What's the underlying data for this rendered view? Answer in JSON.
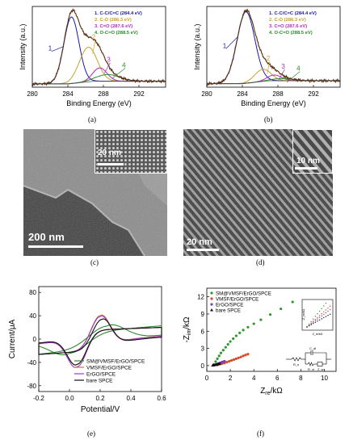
{
  "panels": {
    "a": {
      "label": "(a)",
      "chart_data": {
        "type": "line",
        "xlabel": "Binding Energy (eV)",
        "ylabel": "Intensity (a.u.)",
        "xlim": [
          280,
          295
        ],
        "xticks": [
          280,
          284,
          288,
          292
        ],
        "legend_position": "top-right",
        "legend": [
          {
            "text": "1. C-C/C=C (284.4 eV)",
            "color": "#1a1aa8"
          },
          {
            "text": "2. C-O (286.3 eV)",
            "color": "#c7a12a"
          },
          {
            "text": "3. C=O (287.6 eV)",
            "color": "#b32ab3"
          },
          {
            "text": "4. O-C=O (288.5 eV)",
            "color": "#2a8a2a"
          }
        ],
        "series": [
          {
            "name": "1. C-C/C=C (284.4 eV)",
            "center": 284.4,
            "amplitude": 1.0,
            "sigma": 0.85
          },
          {
            "name": "2. C-O (286.3 eV)",
            "center": 286.3,
            "amplitude": 0.52,
            "sigma": 1.0
          },
          {
            "name": "3. C=O (287.6 eV)",
            "center": 287.6,
            "amplitude": 0.2,
            "sigma": 0.8
          },
          {
            "name": "4. O-C=O (288.5 eV)",
            "center": 288.5,
            "amplitude": 0.1,
            "sigma": 1.3
          }
        ],
        "peak_numbers": [
          "1",
          "2",
          "3",
          "4"
        ]
      }
    },
    "b": {
      "label": "(b)",
      "chart_data": {
        "type": "line",
        "xlabel": "Binding Energy (eV)",
        "ylabel": "Intensity (a.u.)",
        "xlim": [
          280,
          295
        ],
        "xticks": [
          280,
          284,
          288,
          292
        ],
        "legend_position": "top-right",
        "legend": [
          {
            "text": "1. C-C/C=C (284.4 eV)",
            "color": "#1a1aa8"
          },
          {
            "text": "2. C-O (286.3 eV)",
            "color": "#c7a12a"
          },
          {
            "text": "3. C=O (287.6 eV)",
            "color": "#b32ab3"
          },
          {
            "text": "4. O-C=O (288.5 eV)",
            "color": "#2a8a2a"
          }
        ],
        "series": [
          {
            "name": "1. C-C/C=C (284.4 eV)",
            "center": 284.4,
            "amplitude": 1.0,
            "sigma": 1.0
          },
          {
            "name": "2. C-O (286.3 eV)",
            "center": 286.3,
            "amplitude": 0.17,
            "sigma": 0.9
          },
          {
            "name": "3. C=O (287.6 eV)",
            "center": 287.6,
            "amplitude": 0.08,
            "sigma": 0.8
          },
          {
            "name": "4. O-C=O (288.5 eV)",
            "center": 288.5,
            "amplitude": 0.03,
            "sigma": 1.2
          }
        ],
        "peak_numbers": [
          "1",
          "2",
          "3",
          "4"
        ]
      }
    },
    "c": {
      "label": "(c)",
      "scale_main": "200 nm",
      "scale_inset": "20 nm"
    },
    "d": {
      "label": "(d)",
      "scale_main": "20 nm",
      "scale_inset": "10 nm"
    },
    "e": {
      "label": "(e)",
      "chart_data": {
        "type": "line",
        "xlabel": "Potential/V",
        "ylabel": "Current/μA",
        "xlim": [
          -0.2,
          0.6
        ],
        "ylim": [
          -90,
          90
        ],
        "xticks": [
          "-0.2",
          "0.0",
          "0.2",
          "0.4",
          "0.6"
        ],
        "yticks": [
          "-80",
          "-40",
          "0",
          "40",
          "80"
        ],
        "legend_position": "bottom-center",
        "series": [
          {
            "name": "SM@VMSF/ErGO/SPCE",
            "color": "#2e8b2e",
            "ip_a": 42,
            "ip_c": -40,
            "epa": 0.24,
            "epc": 0.0,
            "width": 0.16,
            "bg": 10
          },
          {
            "name": "VMSF/ErGO/SPCE",
            "color": "#c47a35",
            "ip_a": 70,
            "ip_c": -68,
            "epa": 0.2,
            "epc": 0.05,
            "width": 0.085,
            "bg": 12
          },
          {
            "name": "ErGO/SPCE",
            "color": "#a536c8",
            "ip_a": 68,
            "ip_c": -73,
            "epa": 0.2,
            "epc": 0.05,
            "width": 0.085,
            "bg": 12
          },
          {
            "name": "bare SPCE",
            "color": "#111111",
            "ip_a": 62,
            "ip_c": -68,
            "epa": 0.21,
            "epc": 0.05,
            "width": 0.085,
            "bg": 12
          }
        ]
      }
    },
    "f": {
      "label": "(f)",
      "chart_data": {
        "type": "scatter",
        "xlabel": "Z",
        "xlabel_sub": "re",
        "xlabel_unit": "/kΩ",
        "ylabel": "-Z",
        "ylabel_sub": "im",
        "ylabel_unit": "/kΩ",
        "xlim": [
          0,
          11
        ],
        "ylim": [
          -1,
          13.5
        ],
        "xticks": [
          "0",
          "2",
          "4",
          "6",
          "8",
          "10"
        ],
        "yticks": [
          "0",
          "3",
          "6",
          "9",
          "12"
        ],
        "legend_position": "top-left",
        "series": [
          {
            "name": "SM@VMSF/ErGO/SPCE",
            "color": "#2e9a2e",
            "marker": "circle",
            "x": [
              0.6,
              0.75,
              0.9,
              1.05,
              1.2,
              1.4,
              1.6,
              1.8,
              2.0,
              2.25,
              2.5,
              2.8,
              3.1,
              3.5,
              4.0,
              4.6,
              5.4,
              6.3,
              7.3
            ],
            "y": [
              0.2,
              0.7,
              1.2,
              1.7,
              2.2,
              2.7,
              3.2,
              3.7,
              4.2,
              4.7,
              5.2,
              5.7,
              6.2,
              6.7,
              7.3,
              8.0,
              8.9,
              9.9,
              11.1
            ]
          },
          {
            "name": "VMSF/ErGO/SPCE",
            "color": "#d64b2b",
            "marker": "circle",
            "x": [
              0.9,
              1.1,
              1.3,
              1.5,
              1.7,
              1.9,
              2.1,
              2.3,
              2.5,
              2.7,
              2.9,
              3.1,
              3.3,
              3.5
            ],
            "y": [
              0.1,
              0.25,
              0.35,
              0.45,
              0.6,
              0.75,
              0.9,
              1.05,
              1.2,
              1.35,
              1.5,
              1.7,
              1.85,
              2.0
            ]
          },
          {
            "name": "ErGO/SPCE",
            "color": "#7a3db5",
            "marker": "circle",
            "x": [
              0.6,
              0.7,
              0.8,
              0.9,
              1.0,
              1.1,
              1.2,
              1.3,
              1.4,
              1.5
            ],
            "y": [
              0.05,
              0.12,
              0.2,
              0.28,
              0.36,
              0.44,
              0.52,
              0.6,
              0.68,
              0.76
            ]
          },
          {
            "name": "bare SPCE",
            "color": "#111111",
            "marker": "triangle",
            "x": [
              0.5,
              0.6,
              0.7,
              0.8,
              0.9,
              1.0,
              1.1
            ],
            "y": [
              0.05,
              0.1,
              0.15,
              0.2,
              0.25,
              0.3,
              0.35
            ]
          }
        ],
        "inset_xlabel": "Z_re/kΩ",
        "inset_ylabel": "-Z_im/kΩ",
        "circuit_labels": [
          "C_dl",
          "R_s",
          "R_ct",
          "Z_w"
        ]
      }
    }
  },
  "colors": {
    "blue": "#1a1aa8",
    "gold": "#c7a12a",
    "magenta": "#b32ab3",
    "green": "#2a8a2a",
    "envelope": "#5a2a0a"
  }
}
